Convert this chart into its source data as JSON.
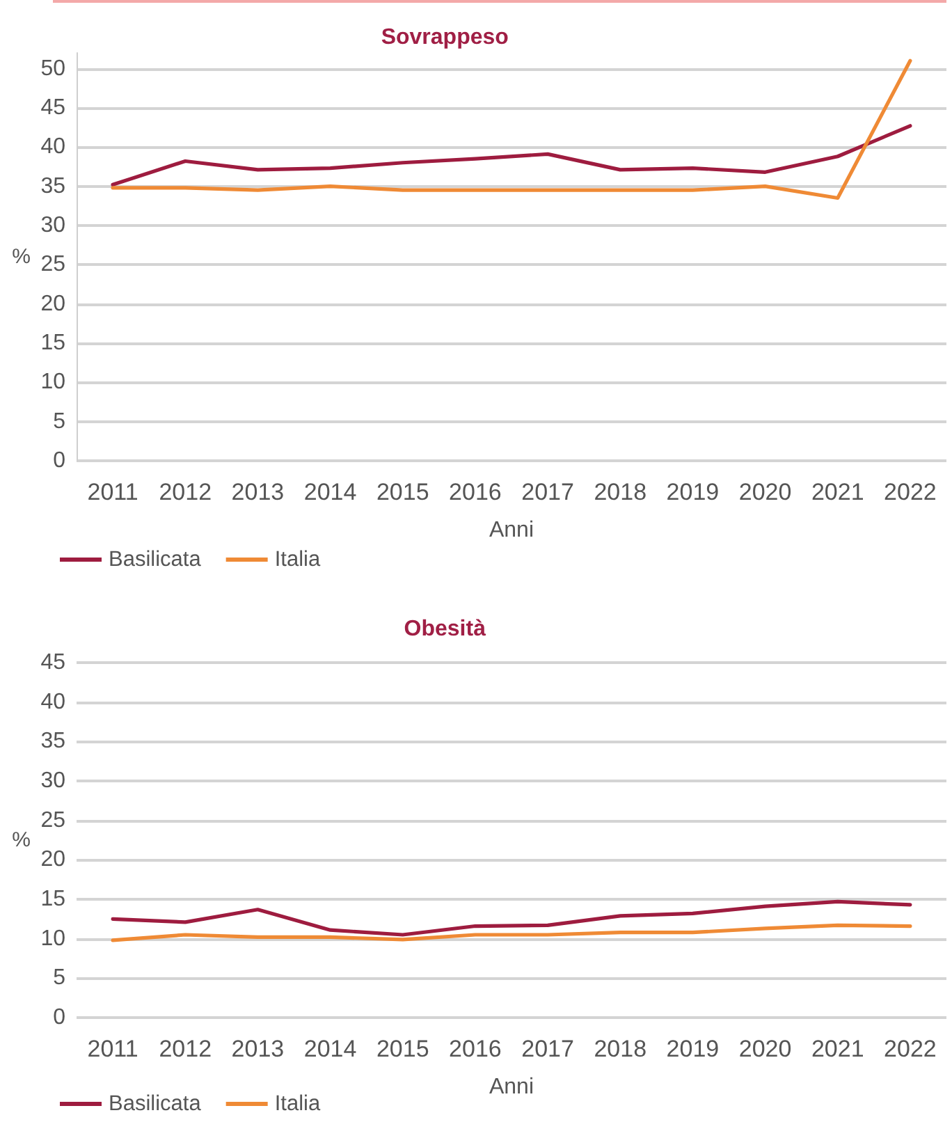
{
  "chart_data": [
    {
      "type": "line",
      "title": "Sovrappeso",
      "xlabel": "Anni",
      "ylabel": "%",
      "categories": [
        "2011",
        "2012",
        "2013",
        "2014",
        "2015",
        "2016",
        "2017",
        "2018",
        "2019",
        "2020",
        "2021",
        "2022"
      ],
      "series": [
        {
          "name": "Basilicata",
          "color": "#9e1c3f",
          "values": [
            35.2,
            38.2,
            37.1,
            37.3,
            38.0,
            38.5,
            39.1,
            37.1,
            37.3,
            36.8,
            38.8,
            42.7
          ]
        },
        {
          "name": "Italia",
          "color": "#ef8a35",
          "values": [
            34.8,
            34.8,
            34.5,
            35.0,
            34.5,
            34.5,
            34.5,
            34.5,
            34.5,
            35.0,
            33.5,
            51.0
          ]
        }
      ],
      "ylim": [
        0,
        52
      ],
      "yticks": [
        0,
        5,
        10,
        15,
        20,
        25,
        30,
        35,
        40,
        45,
        50
      ],
      "grid": "y",
      "legend": "bottom left",
      "marker": "none",
      "line_style": "solid"
    },
    {
      "type": "line",
      "title": "Obesità",
      "xlabel": "Anni",
      "ylabel": "%",
      "categories": [
        "2011",
        "2012",
        "2013",
        "2014",
        "2015",
        "2016",
        "2017",
        "2018",
        "2019",
        "2020",
        "2021",
        "2022"
      ],
      "series": [
        {
          "name": "Basilicata",
          "color": "#9e1c3f",
          "values": [
            12.5,
            12.1,
            13.7,
            11.1,
            10.5,
            11.6,
            11.7,
            12.9,
            13.2,
            14.1,
            14.7,
            14.3
          ]
        },
        {
          "name": "Italia",
          "color": "#ef8a35",
          "values": [
            9.8,
            10.5,
            10.2,
            10.2,
            9.9,
            10.5,
            10.5,
            10.8,
            10.8,
            11.3,
            11.7,
            11.6
          ]
        }
      ],
      "ylim": [
        0,
        45
      ],
      "yticks": [
        0,
        5,
        10,
        15,
        20,
        25,
        30,
        35,
        40,
        45
      ],
      "grid": "y",
      "legend": "bottom left",
      "marker": "none",
      "line_style": "solid"
    }
  ]
}
